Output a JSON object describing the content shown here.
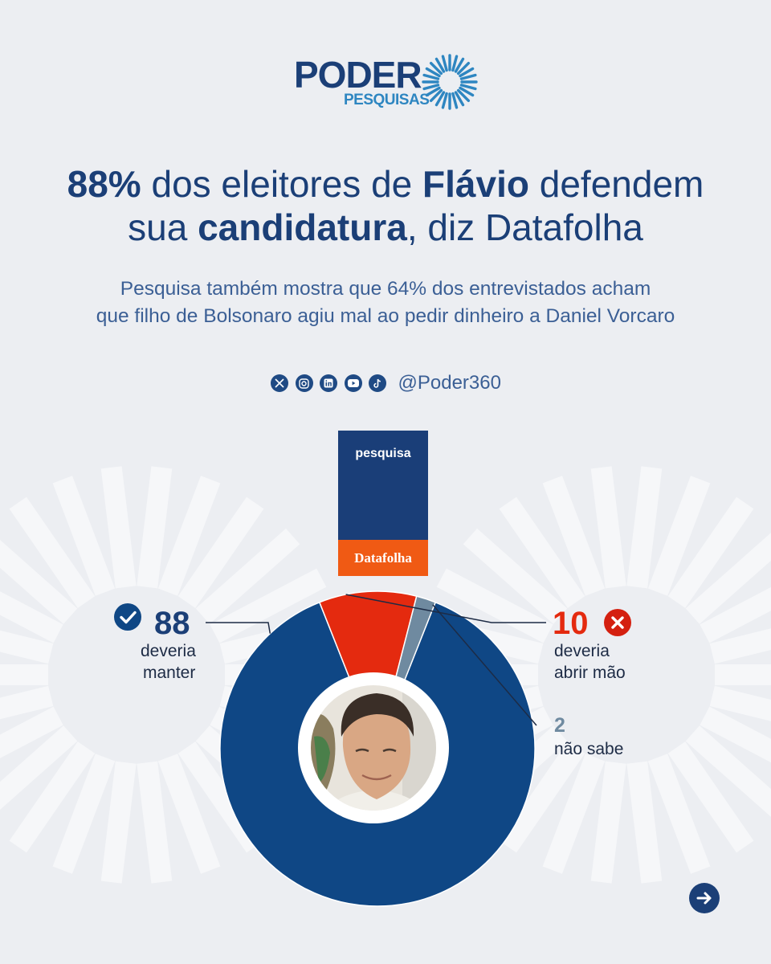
{
  "brand": {
    "wordmark": "PODER",
    "sub": "PESQUISAS"
  },
  "headline": {
    "part1_bold": "88%",
    "part2": " dos eleitores de ",
    "part3_bold": "Flávio",
    "part4": " defendem",
    "part5": "sua ",
    "part6_bold": "candidatura",
    "part7": ", diz Datafolha"
  },
  "subhead": {
    "line1": "Pesquisa também mostra que 64% dos entrevistados acham",
    "line2": "que filho de Bolsonaro agiu mal ao pedir dinheiro a Daniel Vorcaro"
  },
  "social": {
    "icons": [
      "x-icon",
      "instagram-icon",
      "linkedin-icon",
      "youtube-icon",
      "tiktok-icon"
    ],
    "handle": "@Poder360"
  },
  "badge": {
    "top": "pesquisa",
    "bottom": "Datafolha"
  },
  "chart_data": {
    "type": "pie",
    "slices": [
      {
        "value": 88,
        "label_line1": "deveria",
        "label_line2": "manter",
        "color": "#0f4785"
      },
      {
        "value": 10,
        "label_line1": "deveria",
        "label_line2": "abrir mão",
        "color": "#e42a0f"
      },
      {
        "value": 2,
        "label_line1": "não sabe",
        "label_line2": "",
        "color": "#6f8aa0"
      }
    ]
  },
  "colors": {
    "navy": "#1b3f77",
    "orange": "#f05a14",
    "red": "#e42a0f",
    "gray": "#6f8aa0",
    "background": "#eceef2"
  }
}
